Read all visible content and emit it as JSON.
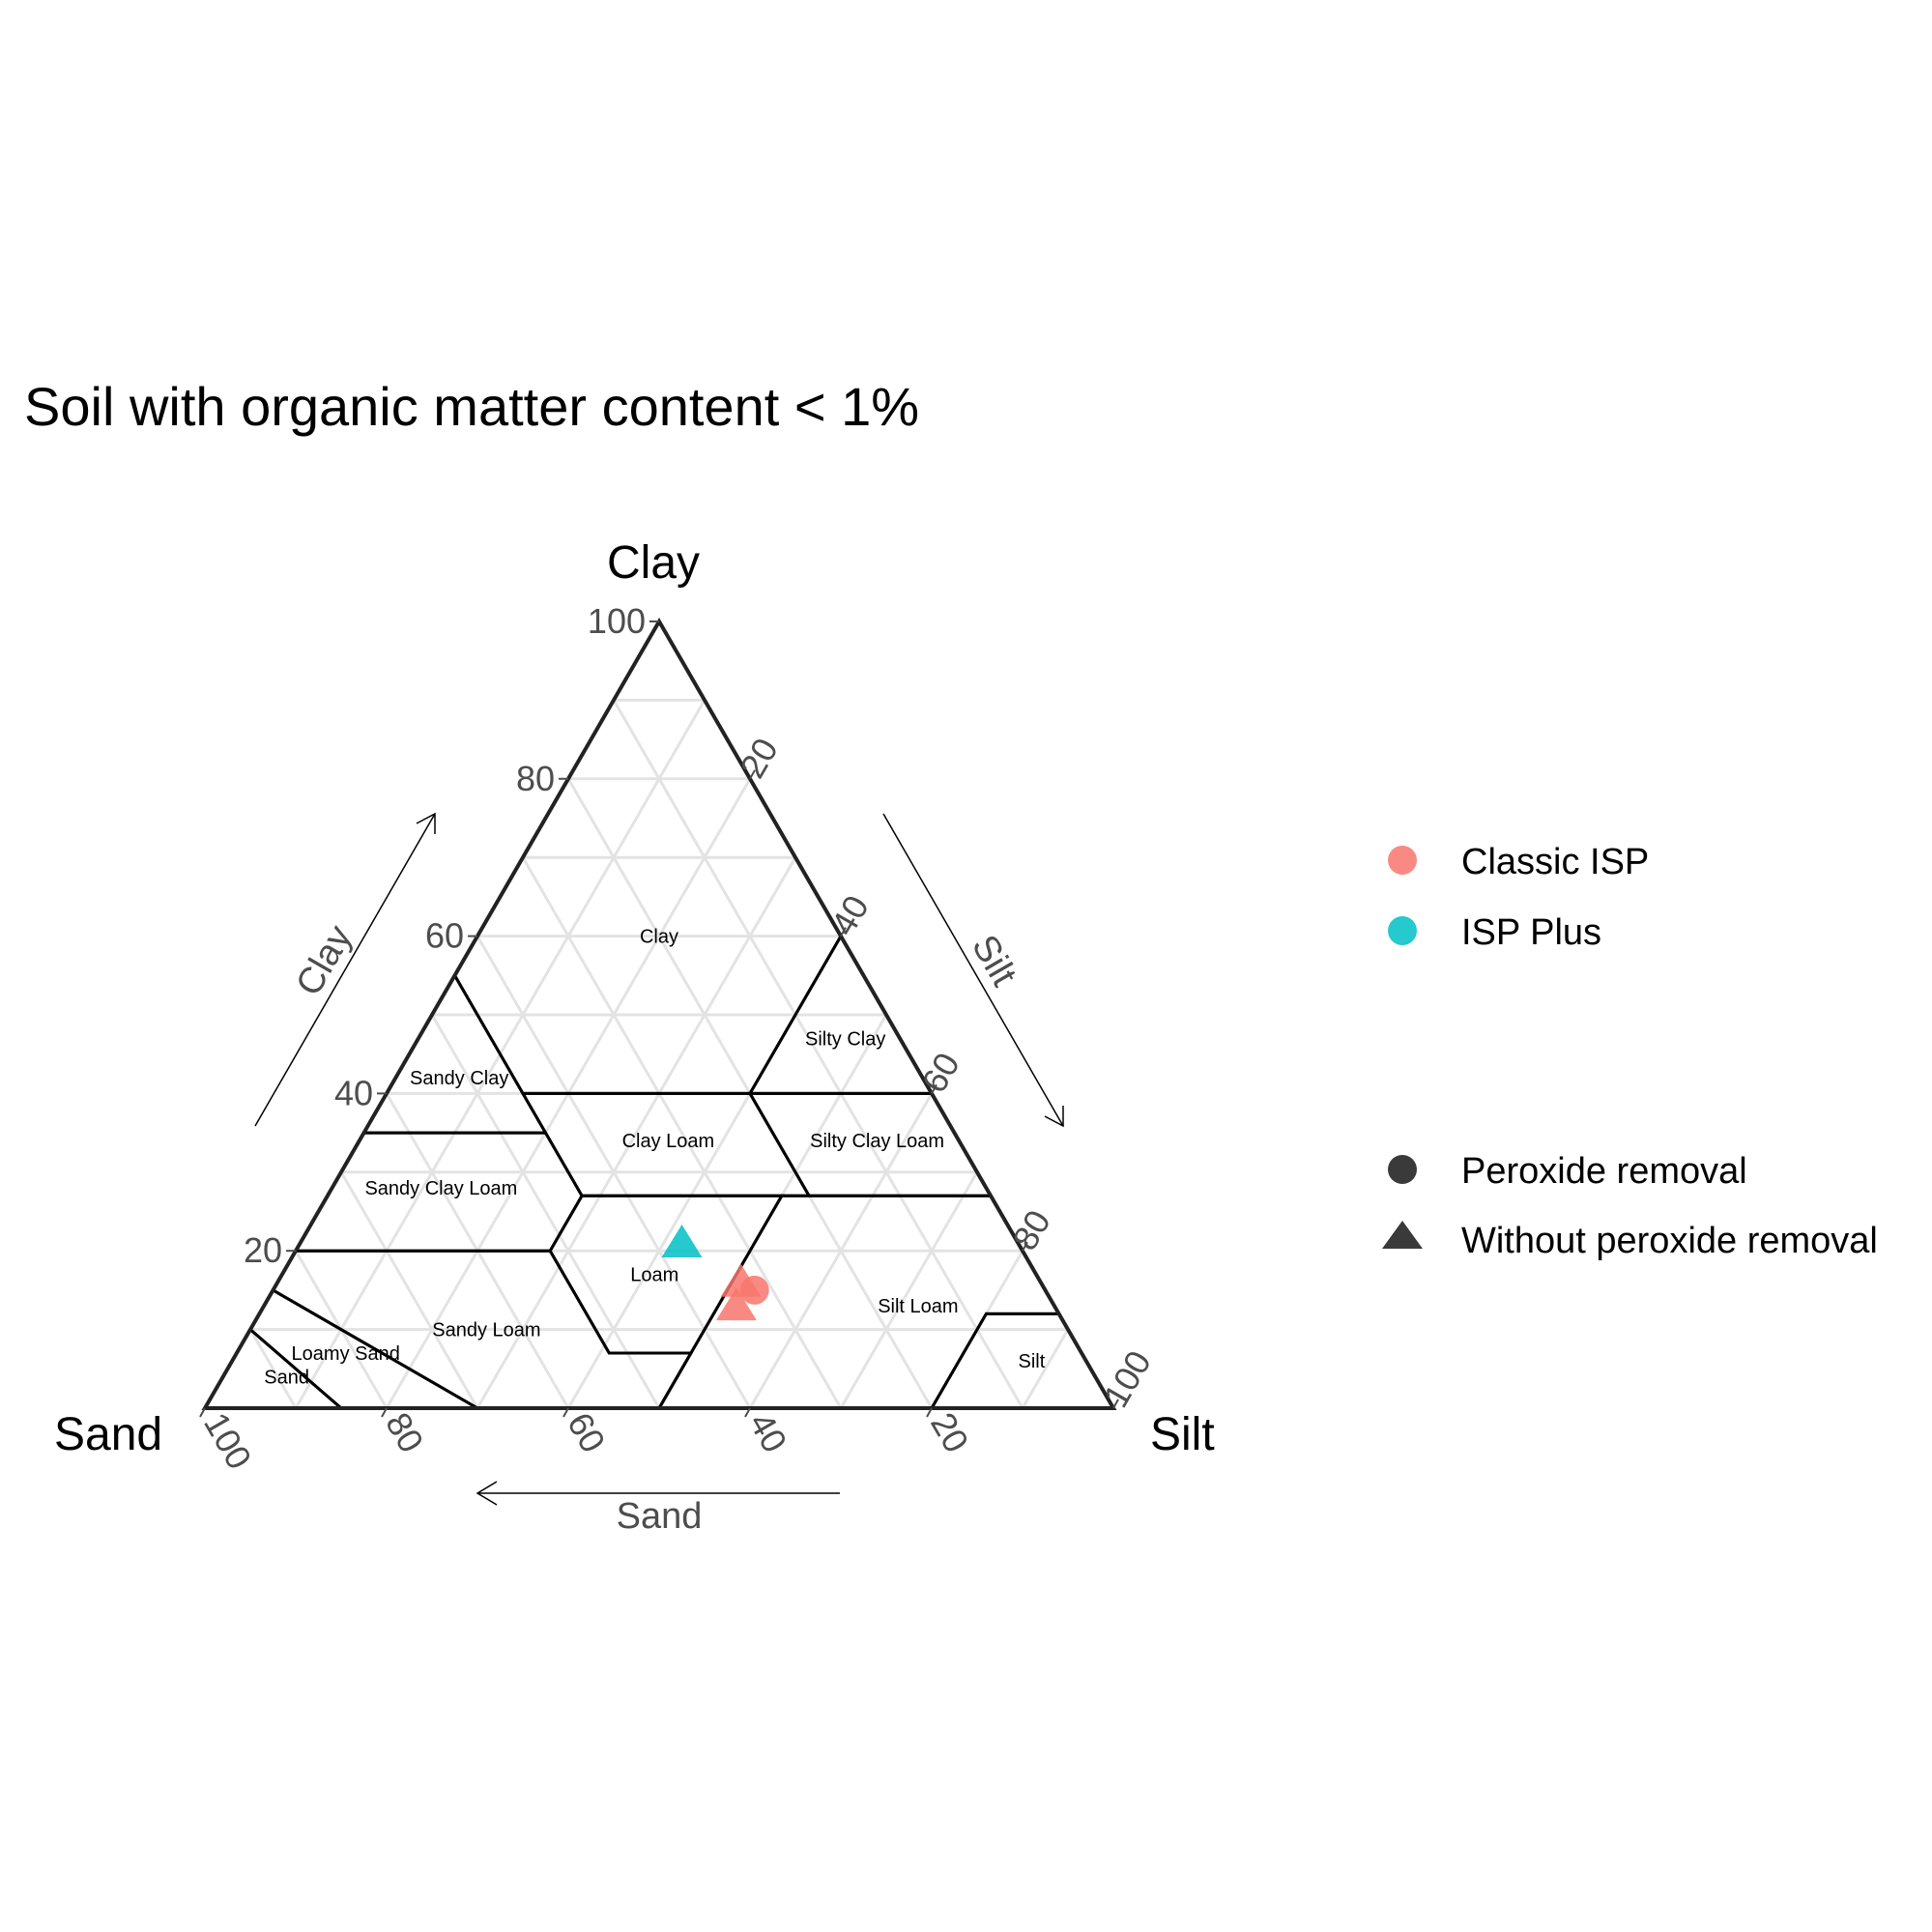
{
  "chart_data": {
    "type": "scatter",
    "subtype": "ternary",
    "title": "Soil with organic matter content < 1%",
    "axes": {
      "top": "Clay",
      "left": "Sand",
      "right": "Silt"
    },
    "arrow_titles": {
      "clay": "Clay",
      "silt": "Silt",
      "sand": "Sand"
    },
    "ticks": [
      20,
      40,
      60,
      80,
      100
    ],
    "tick_labels": [
      "20",
      "40",
      "60",
      "80",
      "100"
    ],
    "grid": true,
    "grid_step": 10,
    "regions": [
      {
        "name": "Clay",
        "label_pos": {
          "sand": 20,
          "silt": 20,
          "clay": 60
        },
        "boundary": [
          {
            "sand": 45,
            "silt": 0,
            "clay": 55
          },
          {
            "sand": 0,
            "silt": 0,
            "clay": 100
          },
          {
            "sand": 0,
            "silt": 40,
            "clay": 60
          },
          {
            "sand": 20,
            "silt": 40,
            "clay": 40
          },
          {
            "sand": 45,
            "silt": 15,
            "clay": 40
          }
        ]
      },
      {
        "name": "Silty Clay",
        "label_pos": {
          "sand": 6,
          "silt": 47,
          "clay": 47
        },
        "boundary": [
          {
            "sand": 0,
            "silt": 40,
            "clay": 60
          },
          {
            "sand": 0,
            "silt": 60,
            "clay": 40
          },
          {
            "sand": 20,
            "silt": 40,
            "clay": 40
          }
        ]
      },
      {
        "name": "Sandy Clay",
        "label_pos": {
          "sand": 51,
          "silt": 7,
          "clay": 42
        },
        "boundary": [
          {
            "sand": 45,
            "silt": 0,
            "clay": 55
          },
          {
            "sand": 65,
            "silt": 0,
            "clay": 35
          },
          {
            "sand": 45,
            "silt": 20,
            "clay": 35
          }
        ]
      },
      {
        "name": "Clay Loam",
        "label_pos": {
          "sand": 32,
          "silt": 34,
          "clay": 34
        },
        "boundary": [
          {
            "sand": 45,
            "silt": 15,
            "clay": 40
          },
          {
            "sand": 20,
            "silt": 40,
            "clay": 40
          },
          {
            "sand": 20,
            "silt": 53,
            "clay": 27
          },
          {
            "sand": 45,
            "silt": 28,
            "clay": 27
          }
        ]
      },
      {
        "name": "Silty Clay Loam",
        "label_pos": {
          "sand": 9,
          "silt": 57,
          "clay": 34
        },
        "boundary": [
          {
            "sand": 20,
            "silt": 40,
            "clay": 40
          },
          {
            "sand": 0,
            "silt": 60,
            "clay": 40
          },
          {
            "sand": 0,
            "silt": 73,
            "clay": 27
          },
          {
            "sand": 20,
            "silt": 53,
            "clay": 27
          }
        ]
      },
      {
        "name": "Sandy Clay Loam",
        "label_pos": {
          "sand": 60,
          "silt": 12,
          "clay": 28
        },
        "boundary": [
          {
            "sand": 65,
            "silt": 0,
            "clay": 35
          },
          {
            "sand": 45,
            "silt": 20,
            "clay": 35
          },
          {
            "sand": 45,
            "silt": 28,
            "clay": 27
          },
          {
            "sand": 52,
            "silt": 28,
            "clay": 20
          },
          {
            "sand": 80,
            "silt": 0,
            "clay": 20
          }
        ]
      },
      {
        "name": "Loam",
        "label_pos": {
          "sand": 42,
          "silt": 41,
          "clay": 17
        },
        "boundary": [
          {
            "sand": 45,
            "silt": 28,
            "clay": 27
          },
          {
            "sand": 23,
            "silt": 50,
            "clay": 27
          },
          {
            "sand": 50,
            "silt": 50,
            "clay": 0
          },
          {
            "sand": 43,
            "silt": 50,
            "clay": 7
          },
          {
            "sand": 52,
            "silt": 41,
            "clay": 7
          },
          {
            "sand": 52,
            "silt": 28,
            "clay": 20
          }
        ]
      },
      {
        "name": "Sandy Loam",
        "label_pos": {
          "sand": 64,
          "silt": 26,
          "clay": 10
        },
        "boundary": [
          {
            "sand": 80,
            "silt": 0,
            "clay": 20
          },
          {
            "sand": 52,
            "silt": 28,
            "clay": 20
          },
          {
            "sand": 52,
            "silt": 41,
            "clay": 7
          },
          {
            "sand": 43,
            "silt": 50,
            "clay": 7
          },
          {
            "sand": 50,
            "silt": 50,
            "clay": 0
          },
          {
            "sand": 70,
            "silt": 30,
            "clay": 0
          },
          {
            "sand": 85,
            "silt": 0,
            "clay": 15
          }
        ]
      },
      {
        "name": "Silt Loam",
        "label_pos": {
          "sand": 15,
          "silt": 72,
          "clay": 13
        },
        "boundary": [
          {
            "sand": 50,
            "silt": 50,
            "clay": 0
          },
          {
            "sand": 23,
            "silt": 50,
            "clay": 27
          },
          {
            "sand": 0,
            "silt": 73,
            "clay": 27
          },
          {
            "sand": 0,
            "silt": 88,
            "clay": 12
          },
          {
            "sand": 8,
            "silt": 80,
            "clay": 12
          },
          {
            "sand": 20,
            "silt": 80,
            "clay": 0
          }
        ]
      },
      {
        "name": "Silt",
        "label_pos": {
          "sand": 6,
          "silt": 88,
          "clay": 6
        },
        "boundary": [
          {
            "sand": 20,
            "silt": 80,
            "clay": 0
          },
          {
            "sand": 8,
            "silt": 80,
            "clay": 12
          },
          {
            "sand": 0,
            "silt": 88,
            "clay": 12
          },
          {
            "sand": 0,
            "silt": 100,
            "clay": 0
          }
        ]
      },
      {
        "name": "Loamy Sand",
        "label_pos": {
          "sand": 81,
          "silt": 12,
          "clay": 7
        },
        "boundary": [
          {
            "sand": 85,
            "silt": 0,
            "clay": 15
          },
          {
            "sand": 70,
            "silt": 30,
            "clay": 0
          },
          {
            "sand": 85,
            "silt": 15,
            "clay": 0
          },
          {
            "sand": 90,
            "silt": 0,
            "clay": 10
          }
        ]
      },
      {
        "name": "Sand",
        "label_pos": {
          "sand": 89,
          "silt": 7,
          "clay": 4
        },
        "boundary": [
          {
            "sand": 90,
            "silt": 0,
            "clay": 10
          },
          {
            "sand": 85,
            "silt": 15,
            "clay": 0
          },
          {
            "sand": 100,
            "silt": 0,
            "clay": 0
          }
        ]
      }
    ],
    "series": [
      {
        "name": "Classic ISP",
        "color": "#F8766D",
        "points": [
          {
            "sand": 32,
            "silt": 53,
            "clay": 15,
            "method": "Peroxide removal"
          },
          {
            "sand": 33,
            "silt": 51,
            "clay": 16,
            "method": "Without peroxide removal"
          },
          {
            "sand": 35,
            "silt": 52,
            "clay": 13,
            "method": "Without peroxide removal"
          }
        ]
      },
      {
        "name": "ISP Plus",
        "color": "#00BFC4",
        "points": [
          {
            "sand": 37,
            "silt": 42,
            "clay": 21,
            "method": "Without peroxide removal"
          }
        ]
      }
    ],
    "shape_legend": [
      {
        "name": "Peroxide removal",
        "shape": "circle"
      },
      {
        "name": "Without peroxide removal",
        "shape": "triangle"
      }
    ],
    "legend_position": "right"
  }
}
